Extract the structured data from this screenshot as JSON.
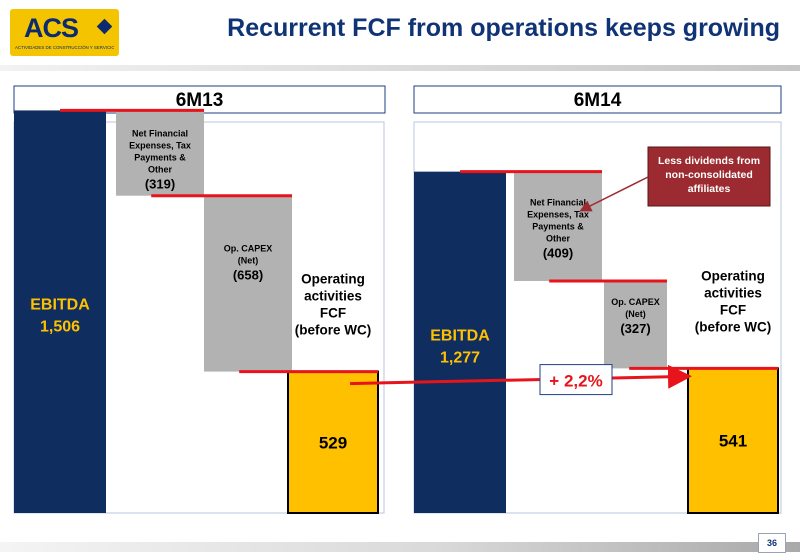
{
  "header": {
    "logo_text": "ACS",
    "logo_subtext": "ACTIVIDADES DE CONSTRUCCIÓN Y SERVICIOS",
    "title": "Recurrent FCF from operations keeps growing"
  },
  "footer": {
    "page_number": "36"
  },
  "colors": {
    "ebitda_bar": "#0f2d5e",
    "deduction_bar": "#b2b2b2",
    "fcf_bar": "#ffc000",
    "connector": "#e8141b",
    "callout": "#9b2b30",
    "title": "#0f3375"
  },
  "chart_data": [
    {
      "type": "bar",
      "subtype": "waterfall",
      "title": "6M13",
      "categories": [
        "EBITDA",
        "Net Financial Expenses, Tax Payments & Other",
        "Op. CAPEX (Net)",
        "Operating activities FCF (before WC)"
      ],
      "values": [
        1506,
        -319,
        -658,
        529
      ],
      "value_labels": [
        "1,506",
        "(319)",
        "(658)",
        "529"
      ],
      "ylim": [
        0,
        1560
      ]
    },
    {
      "type": "bar",
      "subtype": "waterfall",
      "title": "6M14",
      "categories": [
        "EBITDA",
        "Net Financial Expenses, Tax Payments & Other",
        "Op. CAPEX (Net)",
        "Operating activities FCF (before WC)"
      ],
      "values": [
        1277,
        -409,
        -327,
        541
      ],
      "value_labels": [
        "1,277",
        "(409)",
        "(327)",
        "541"
      ],
      "ylim": [
        0,
        1560
      ]
    }
  ],
  "annotations": {
    "growth_label": "+ 2,2%",
    "callout": "Less dividends from non-consolidated affiliates"
  }
}
